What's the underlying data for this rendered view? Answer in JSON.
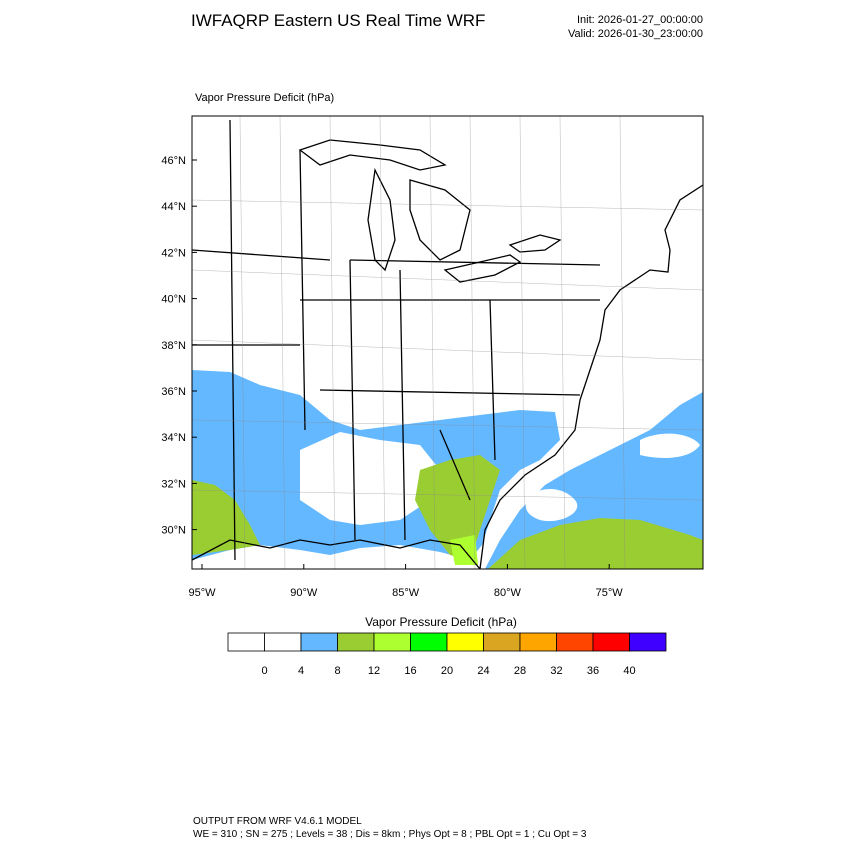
{
  "header": {
    "title": "IWFAQRP Eastern US Real Time WRF",
    "init": "Init: 2026-01-27_00:00:00",
    "valid": "Valid: 2026-01-30_23:00:00"
  },
  "map": {
    "subtitle": "Vapor Pressure Deficit   (hPa)",
    "lat_labels": [
      "46°N",
      "44°N",
      "42°N",
      "40°N",
      "38°N",
      "36°N",
      "34°N",
      "32°N",
      "30°N"
    ],
    "lon_labels": [
      "95°W",
      "90°W",
      "85°W",
      "80°W",
      "75°W"
    ]
  },
  "colorbar": {
    "title": "Vapor Pressure Deficit  (hPa)",
    "levels": [
      0,
      4,
      8,
      12,
      16,
      20,
      24,
      28,
      32,
      36,
      40
    ],
    "colors": [
      "#ffffff",
      "#ffffff",
      "#63b8ff",
      "#9acd32",
      "#adff2f",
      "#00ff00",
      "#ffff00",
      "#daa520",
      "#ffa500",
      "#ff4500",
      "#ff0000",
      "#3f00ff"
    ]
  },
  "footer": {
    "line1": "OUTPUT FROM WRF V4.6.1 MODEL",
    "line2": "WE = 310 ; SN = 275 ; Levels = 38 ; Dis = 8km ; Phys Opt = 8 ; PBL Opt = 1 ; Cu Opt = 3"
  }
}
